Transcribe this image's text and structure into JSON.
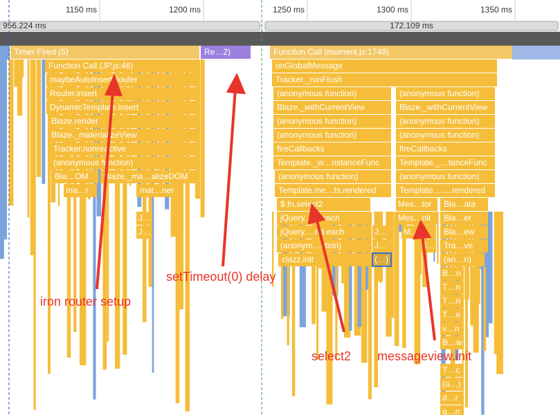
{
  "ruler": {
    "ticks": [
      "1150 ms",
      "1200 ms",
      "1250 ms",
      "1300 ms",
      "1350 ms"
    ]
  },
  "ranges": [
    "956.224 ms",
    "172.109 ms"
  ],
  "blocks": [
    "Timer Fired (5)",
    "Re…2)",
    "Function Call (moment.js:1749)",
    "Function Call (JP.js:46)",
    "onGlobalMessage",
    "maybeAutoInsertRouter",
    "Tracker._runFlush",
    "Router.insert",
    "(anonymous function)",
    "(anonymous function)",
    "DynamicTemplate.insert",
    "Blaze._withCurrentView",
    "Blaze._withCurrentView",
    "Blaze.render",
    "(anonymous function)",
    "(anonymous function)",
    "Blaze._materializeView",
    "(anonymous function)",
    "(anonymous function)",
    "Tracker.nonreactive",
    "fireCallbacks",
    "fireCallbacks",
    "(anonymous function)",
    "Template._w…nstanceFunc",
    "Template._…tanceFunc",
    "Bla…OM",
    "Blaze._ma…alizeDOM",
    "(anonymous function)",
    "(anonymous function)",
    "ma…r",
    "mat…ner",
    "Template.me…ts.rendered",
    "Template.……rendered",
    "$.fn.select2",
    "Mes…tor",
    "Bla…ata",
    "J…",
    "jQuery.…h.each",
    "Mes…nit",
    "Bla…er",
    "J…",
    "jQuery.…nd.each",
    "J…",
    "M…",
    "Bla…ew",
    "(anonym…ction)",
    "J…",
    "S…",
    "Tra…ve",
    "clazz.init",
    "(…)",
    "(an…n)",
    "B…n",
    "T…n",
    "T…n",
    "T…e",
    "v…n",
    "B…w",
    "T…c",
    "(a…)",
    "d…r",
    "g…n"
  ],
  "annotations": [
    "iron router setup",
    "setTimeout(0) delay",
    "select2",
    "messageview.init"
  ]
}
